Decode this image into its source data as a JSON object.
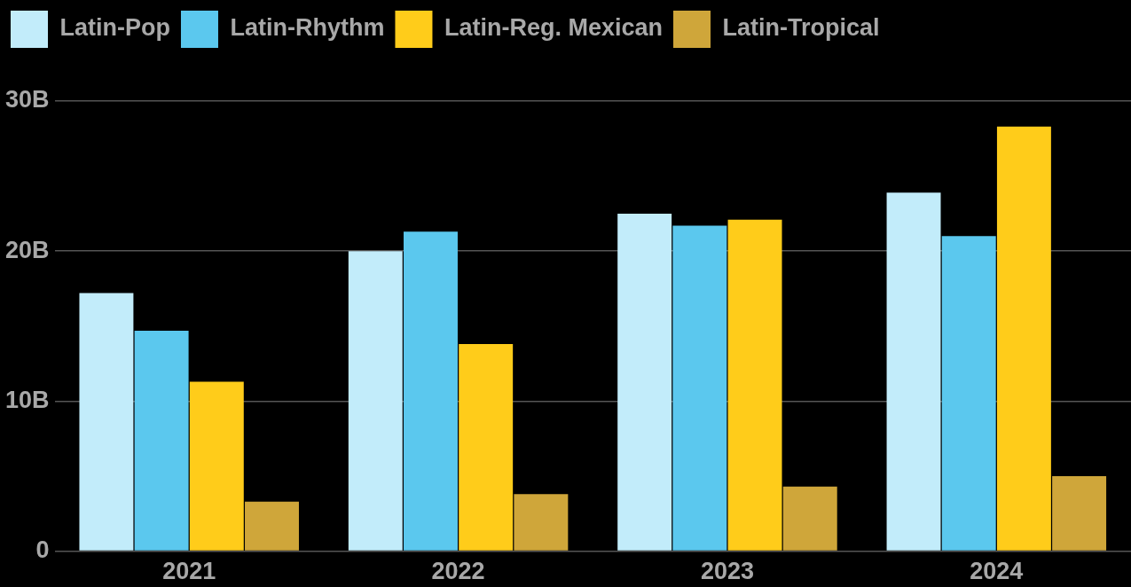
{
  "chart_data": {
    "type": "bar",
    "categories": [
      "2021",
      "2022",
      "2023",
      "2024"
    ],
    "series": [
      {
        "name": "Latin-Pop",
        "color": "#c2ecfa",
        "values": [
          17.2,
          20.0,
          22.5,
          23.9
        ]
      },
      {
        "name": "Latin-Rhythm",
        "color": "#5bc8ee",
        "values": [
          14.7,
          21.3,
          21.7,
          21.0
        ]
      },
      {
        "name": "Latin-Reg. Mexican",
        "color": "#ffcc1a",
        "values": [
          11.3,
          13.8,
          22.1,
          28.3
        ]
      },
      {
        "name": "Latin-Tropical",
        "color": "#cfa63a",
        "values": [
          3.3,
          3.8,
          4.3,
          5.0
        ]
      }
    ],
    "ylim": [
      0,
      30
    ],
    "yticks": [
      0,
      {
        "value": 10,
        "label": "10B"
      },
      {
        "value": 20,
        "label": "20B"
      },
      {
        "value": 30,
        "label": "30B"
      }
    ],
    "grid": "y",
    "legend": "top left"
  }
}
